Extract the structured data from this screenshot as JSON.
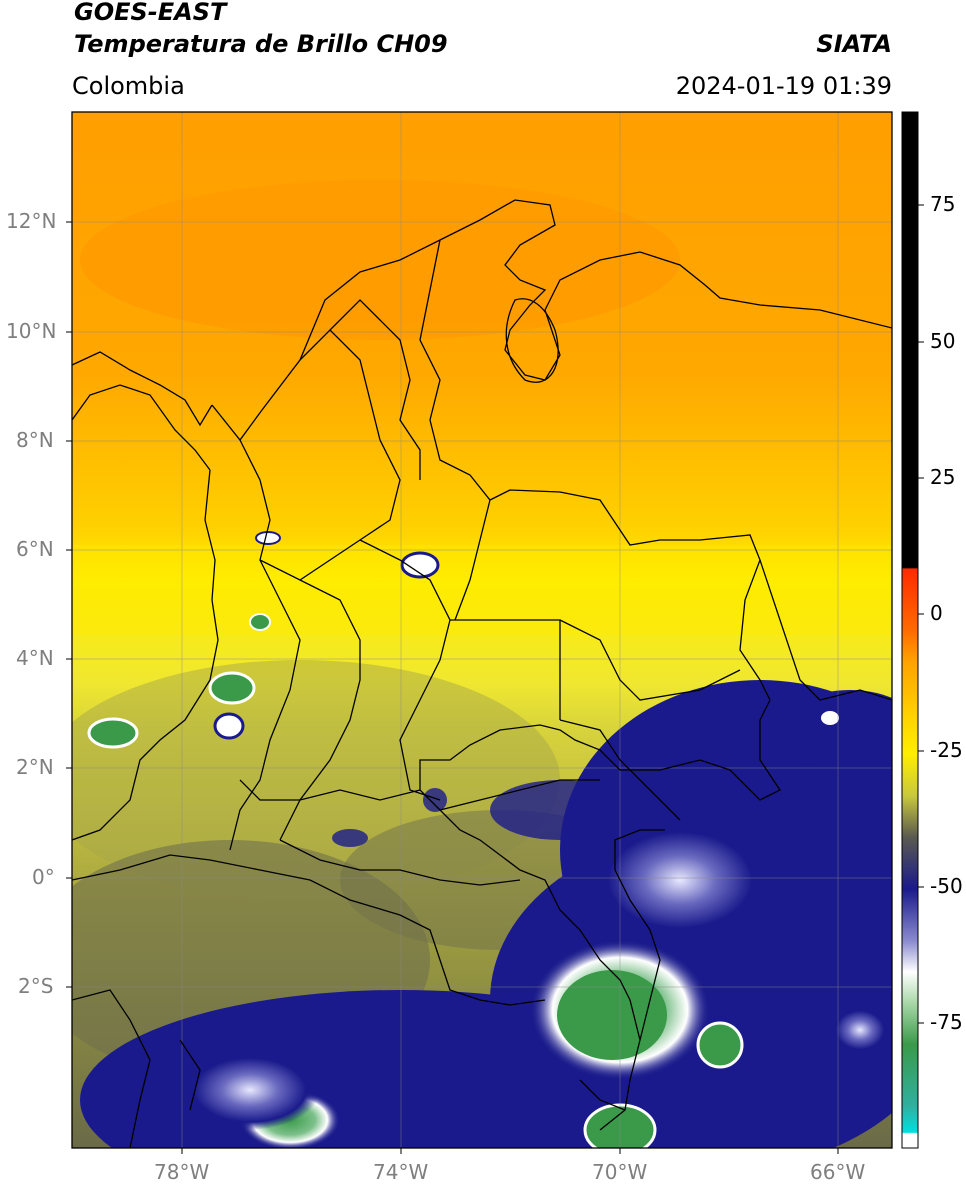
{
  "header": {
    "satellite": "GOES-EAST",
    "product": "Temperatura de Brillo CH09",
    "region": "Colombia",
    "agency": "SIATA",
    "datetime": "2024-01-19 01:39"
  },
  "map": {
    "lon_ticks": [
      "78°W",
      "74°W",
      "70°W",
      "66°W"
    ],
    "lat_ticks": [
      "12°N",
      "10°N",
      "8°N",
      "6°N",
      "4°N",
      "2°N",
      "0°",
      "2°S"
    ]
  },
  "colorbar": {
    "ticks": [
      "75",
      "50",
      "25",
      "0",
      "-25",
      "-50",
      "-75"
    ],
    "colors": {
      "black": "#000000",
      "red": "#ff2a00",
      "orange": "#ffa200",
      "yellow": "#ffee00",
      "olive": "#c8c83c",
      "gray": "#5a5a50",
      "navy": "#1a1a8c",
      "white": "#ffffff",
      "green": "#3a9a4a",
      "cyan": "#00e0e0"
    }
  }
}
